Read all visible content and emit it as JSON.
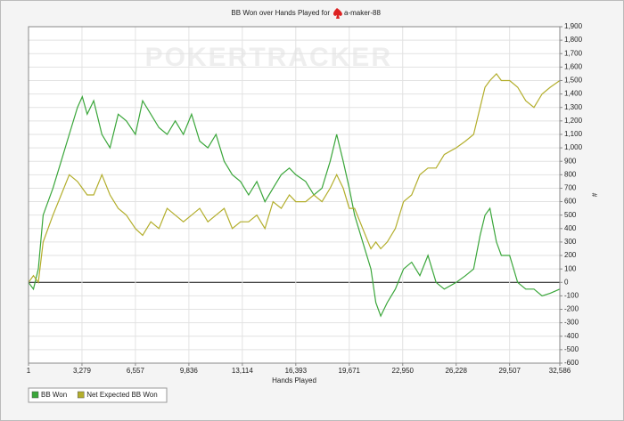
{
  "chart_data": {
    "type": "line",
    "title": "BB Won over Hands Played for",
    "player": "a-maker-88",
    "watermark": "POKERTRACKER",
    "x_label": "Hands Played",
    "y_label": "#",
    "grid": true,
    "legend": "bottom-left",
    "xlim": [
      1,
      32586
    ],
    "ylim": [
      -600,
      1900
    ],
    "xticks": [
      1,
      {
        "value": 3279,
        "label": "3,279"
      },
      {
        "value": 6557,
        "label": "6,557"
      },
      {
        "value": 9836,
        "label": "9,836"
      },
      {
        "value": 13114,
        "label": "13,114"
      },
      {
        "value": 16393,
        "label": "16,393"
      },
      {
        "value": 19671,
        "label": "19,671"
      },
      {
        "value": 22950,
        "label": "22,950"
      },
      {
        "value": 26228,
        "label": "26,228"
      },
      {
        "value": 29507,
        "label": "29,507"
      },
      {
        "value": 32586,
        "label": "32,586"
      }
    ],
    "yticks": [
      -600,
      -500,
      -400,
      -300,
      -200,
      -100,
      0,
      100,
      200,
      300,
      400,
      500,
      600,
      700,
      800,
      900,
      {
        "value": 1000,
        "label": "1,000"
      },
      {
        "value": 1100,
        "label": "1,100"
      },
      {
        "value": 1200,
        "label": "1,200"
      },
      {
        "value": 1300,
        "label": "1,300"
      },
      {
        "value": 1400,
        "label": "1,400"
      },
      {
        "value": 1500,
        "label": "1,500"
      },
      {
        "value": 1600,
        "label": "1,600"
      },
      {
        "value": 1700,
        "label": "1,700"
      },
      {
        "value": 1800,
        "label": "1,800"
      },
      {
        "value": 1900,
        "label": "1,900"
      }
    ],
    "x": [
      1,
      300,
      600,
      900,
      1500,
      2000,
      2500,
      3000,
      3300,
      3600,
      4000,
      4500,
      5000,
      5500,
      6000,
      6557,
      7000,
      7500,
      8000,
      8500,
      9000,
      9500,
      10000,
      10500,
      11000,
      11500,
      12000,
      12500,
      13000,
      13500,
      14000,
      14500,
      15000,
      15500,
      16000,
      16393,
      17000,
      17500,
      18000,
      18500,
      18900,
      19300,
      19671,
      20000,
      20500,
      21000,
      21300,
      21600,
      22000,
      22500,
      23000,
      23500,
      24000,
      24500,
      25000,
      25500,
      26228,
      26800,
      27300,
      27700,
      28000,
      28300,
      28700,
      29000,
      29507,
      30000,
      30500,
      31000,
      31500,
      32000,
      32586
    ],
    "series": [
      {
        "name": "BB Won",
        "color": "#3aa63a",
        "values": [
          0,
          -50,
          100,
          500,
          700,
          900,
          1100,
          1300,
          1380,
          1250,
          1350,
          1100,
          1000,
          1250,
          1200,
          1100,
          1350,
          1250,
          1150,
          1100,
          1200,
          1100,
          1250,
          1050,
          1000,
          1100,
          900,
          800,
          750,
          650,
          750,
          600,
          700,
          800,
          850,
          800,
          750,
          650,
          700,
          900,
          1100,
          900,
          700,
          500,
          300,
          100,
          -150,
          -250,
          -150,
          -50,
          100,
          150,
          50,
          200,
          0,
          -50,
          0,
          50,
          100,
          350,
          500,
          550,
          300,
          200,
          200,
          0,
          -50,
          -50,
          -100,
          -80,
          -50
        ]
      },
      {
        "name": "Net Expected BB Won",
        "color": "#b3ae2c",
        "values": [
          0,
          50,
          0,
          300,
          500,
          650,
          800,
          750,
          700,
          650,
          650,
          800,
          650,
          550,
          500,
          400,
          350,
          450,
          400,
          550,
          500,
          450,
          500,
          550,
          450,
          500,
          550,
          400,
          450,
          450,
          500,
          400,
          600,
          550,
          650,
          600,
          600,
          650,
          600,
          700,
          800,
          700,
          550,
          550,
          400,
          250,
          300,
          250,
          300,
          400,
          600,
          650,
          800,
          850,
          850,
          950,
          1000,
          1050,
          1100,
          1300,
          1450,
          1500,
          1550,
          1500,
          1500,
          1450,
          1350,
          1300,
          1400,
          1450,
          1500
        ]
      }
    ]
  }
}
